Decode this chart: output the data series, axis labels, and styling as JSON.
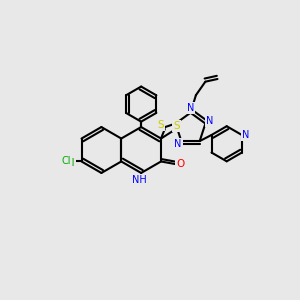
{
  "bg_color": "#e8e8e8",
  "bond_color": "#000000",
  "atom_colors": {
    "N": "#0000ff",
    "O": "#ff0000",
    "S": "#cccc00",
    "Cl": "#00aa00",
    "C": "#000000",
    "H": "#000000"
  }
}
